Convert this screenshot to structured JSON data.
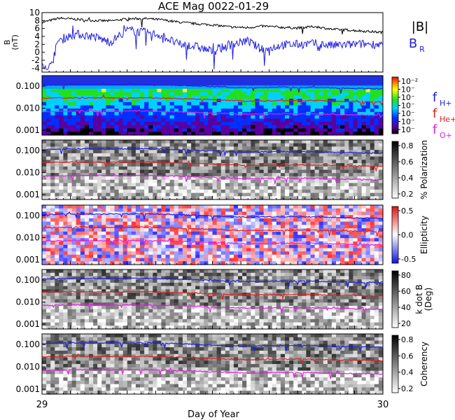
{
  "title": "ACE Mag 0022-01-29",
  "chart_data": {
    "type": "line",
    "title": "ACE Mag 0022-01-29",
    "xlabel": "Day of Year",
    "x_ticks": [
      "29",
      "30"
    ],
    "xlim": [
      29,
      30
    ],
    "panels": [
      {
        "name": "magnetic-field",
        "ylabel_lines": [
          "B",
          "(nT)"
        ],
        "ylim": [
          -5,
          10
        ],
        "y_ticks": [
          "-4",
          "-2",
          "0",
          "2",
          "4",
          "6",
          "8",
          "10"
        ],
        "legend": [
          {
            "label": "|B|",
            "color": "#000000"
          },
          {
            "label": "B",
            "sub": "R",
            "color": "#2020e0"
          }
        ],
        "series": [
          {
            "name": "|B|",
            "color": "#000000",
            "x": [
              29.0,
              29.05,
              29.1,
              29.15,
              29.2,
              29.25,
              29.3,
              29.35,
              29.4,
              29.45,
              29.5,
              29.55,
              29.6,
              29.65,
              29.7,
              29.75,
              29.8,
              29.85,
              29.9,
              29.95,
              30.0
            ],
            "values": [
              7.5,
              8.6,
              8.3,
              8.0,
              7.9,
              8.4,
              8.5,
              8.2,
              7.6,
              7.2,
              6.9,
              6.4,
              6.2,
              6.6,
              6.3,
              6.1,
              6.5,
              5.8,
              5.6,
              5.3,
              5.0
            ]
          },
          {
            "name": "B_R",
            "color": "#2020e0",
            "x": [
              29.0,
              29.02,
              29.05,
              29.1,
              29.15,
              29.2,
              29.25,
              29.3,
              29.35,
              29.4,
              29.45,
              29.5,
              29.55,
              29.6,
              29.65,
              29.7,
              29.75,
              29.8,
              29.85,
              29.9,
              29.95,
              30.0
            ],
            "values": [
              -2.5,
              -4.2,
              3.2,
              4.6,
              4.0,
              2.5,
              5.6,
              5.0,
              4.3,
              2.0,
              1.5,
              0.2,
              1.8,
              2.9,
              0.5,
              1.8,
              2.0,
              2.2,
              1.7,
              1.9,
              2.1,
              2.0
            ]
          }
        ]
      },
      {
        "name": "power-spectrum",
        "ylim_log": [
          0.0006,
          0.3
        ],
        "y_ticks": [
          "0.100",
          "0.010",
          "0.001"
        ],
        "colorbar": {
          "kind": "rainbow",
          "ticks": [
            "10⁻²",
            "10⁻",
            "10⁻",
            "10⁻",
            "10⁻",
            "10⁻",
            "10⁻"
          ]
        },
        "legend": [
          {
            "label": "f",
            "sub": "H+",
            "color": "#2020e0"
          },
          {
            "label": "f",
            "sub": "He+",
            "color": "#e02020"
          },
          {
            "label": "f",
            "sub": "O+",
            "color": "#e020e0"
          }
        ]
      },
      {
        "name": "polarization",
        "ylim_log": [
          0.0006,
          0.3
        ],
        "y_ticks": [
          "0.100",
          "0.010",
          "0.001"
        ],
        "colorbar": {
          "kind": "gray",
          "label": "% Polarization",
          "ticks": [
            "0.8",
            "0.6",
            "0.4",
            "0.2"
          ]
        }
      },
      {
        "name": "ellipticity",
        "ylim_log": [
          0.0006,
          0.3
        ],
        "y_ticks": [
          "0.100",
          "0.010",
          "0.001"
        ],
        "colorbar": {
          "kind": "redblue",
          "label": "Ellipticity",
          "ticks": [
            "0.5",
            "0.0",
            "-0.5"
          ]
        }
      },
      {
        "name": "k-dot-b",
        "ylim_log": [
          0.0006,
          0.3
        ],
        "y_ticks": [
          "0.100",
          "0.010",
          "0.001"
        ],
        "colorbar": {
          "kind": "gray",
          "label_lines": [
            "k dot B",
            "(Deg)"
          ],
          "ticks": [
            "80",
            "60",
            "40",
            "20"
          ]
        }
      },
      {
        "name": "coherency",
        "ylim_log": [
          0.0006,
          0.3
        ],
        "y_ticks": [
          "0.100",
          "0.010",
          "0.001"
        ],
        "colorbar": {
          "kind": "gray",
          "label": "Coherency",
          "ticks": [
            "0.8",
            "0.6",
            "0.4",
            "0.2"
          ]
        }
      }
    ],
    "gyrofrequency_lines": [
      {
        "name": "f_H+",
        "color": "#2020e0",
        "x": [
          29.0,
          29.1,
          29.2,
          29.3,
          29.4,
          29.5,
          29.6,
          29.7,
          29.8,
          29.9,
          30.0
        ],
        "values": [
          0.11,
          0.12,
          0.118,
          0.12,
          0.11,
          0.095,
          0.085,
          0.09,
          0.088,
          0.08,
          0.075
        ]
      },
      {
        "name": "f_He+",
        "color": "#e02020",
        "x": [
          29.0,
          29.1,
          29.2,
          29.3,
          29.4,
          29.5,
          29.6,
          29.7,
          29.8,
          29.9,
          30.0
        ],
        "values": [
          0.028,
          0.03,
          0.029,
          0.03,
          0.027,
          0.024,
          0.021,
          0.022,
          0.022,
          0.02,
          0.019
        ]
      },
      {
        "name": "f_O+",
        "color": "#e020e0",
        "x": [
          29.0,
          29.1,
          29.2,
          29.3,
          29.4,
          29.5,
          29.6,
          29.7,
          29.8,
          29.9,
          30.0
        ],
        "values": [
          0.0069,
          0.0075,
          0.0074,
          0.0075,
          0.0068,
          0.006,
          0.0053,
          0.0056,
          0.0055,
          0.005,
          0.0047
        ]
      }
    ]
  }
}
